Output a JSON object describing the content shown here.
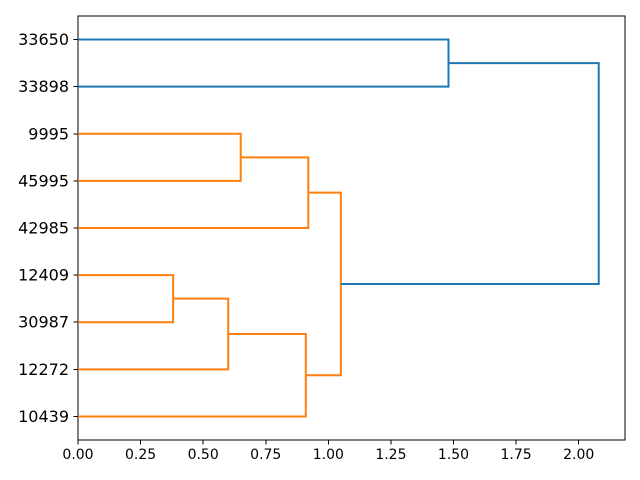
{
  "chart_data": {
    "type": "dendrogram",
    "orientation": "right",
    "leaves": [
      "33650",
      "33898",
      "9995",
      "45995",
      "42985",
      "12409",
      "30987",
      "12272",
      "10439"
    ],
    "merges": [
      {
        "children": [
          "L0",
          "L1"
        ],
        "distance": 1.48,
        "color": "#1f77b4"
      },
      {
        "children": [
          "L2",
          "L3"
        ],
        "distance": 0.65,
        "color": "#ff7f0e"
      },
      {
        "children": [
          "M1",
          "L4"
        ],
        "distance": 0.92,
        "color": "#ff7f0e"
      },
      {
        "children": [
          "L5",
          "L6"
        ],
        "distance": 0.38,
        "color": "#ff7f0e"
      },
      {
        "children": [
          "M3",
          "L7"
        ],
        "distance": 0.6,
        "color": "#ff7f0e"
      },
      {
        "children": [
          "M4",
          "L8"
        ],
        "distance": 0.91,
        "color": "#ff7f0e"
      },
      {
        "children": [
          "M2",
          "M5"
        ],
        "distance": 1.05,
        "color": "#ff7f0e"
      },
      {
        "children": [
          "M0",
          "M6"
        ],
        "distance": 2.08,
        "color": "#1f77b4"
      }
    ],
    "x_axis": {
      "tick_labels": [
        "0.00",
        "0.25",
        "0.50",
        "0.75",
        "1.00",
        "1.25",
        "1.50",
        "1.75",
        "2.00"
      ],
      "tick_values": [
        0,
        0.25,
        0.5,
        0.75,
        1.0,
        1.25,
        1.5,
        1.75,
        2.0
      ],
      "range": [
        0,
        2.185
      ]
    },
    "grid": false,
    "colors": {
      "above_threshold_link": "#1f77b4",
      "cluster_link": "#ff7f0e",
      "axis": "#000000",
      "tick_label": "#000000",
      "background": "#ffffff"
    }
  }
}
